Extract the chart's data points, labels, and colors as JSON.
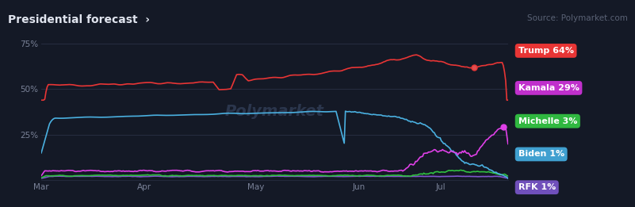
{
  "title": "Presidential forecast  ›",
  "source": "Source: Polymarket.com",
  "background_color": "#141926",
  "plot_bg_color": "#141926",
  "watermark": "Polymarket",
  "x_ticks": [
    "Mar",
    "Apr",
    "May",
    "Jun",
    "Jul"
  ],
  "x_tick_pos": [
    0.0,
    0.22,
    0.46,
    0.68,
    0.855
  ],
  "y_ticks": [
    "25%",
    "50%",
    "75%"
  ],
  "y_tick_vals": [
    25,
    50,
    75
  ],
  "grid_color": "#2a3045",
  "text_color": "#7a8298",
  "title_color": "#e0e4ee",
  "source_color": "#5a6275",
  "trump_color": "#e83535",
  "biden_color": "#4ab0e0",
  "kamala_color": "#e040e8",
  "michelle_color": "#30c040",
  "rfk_color": "#8055cc",
  "trump_label_bg": "#e83535",
  "kamala_label_bg": "#c030cc",
  "michelle_label_bg": "#30b840",
  "biden_label_bg": "#40a0d0",
  "rfk_label_bg": "#7050bb"
}
